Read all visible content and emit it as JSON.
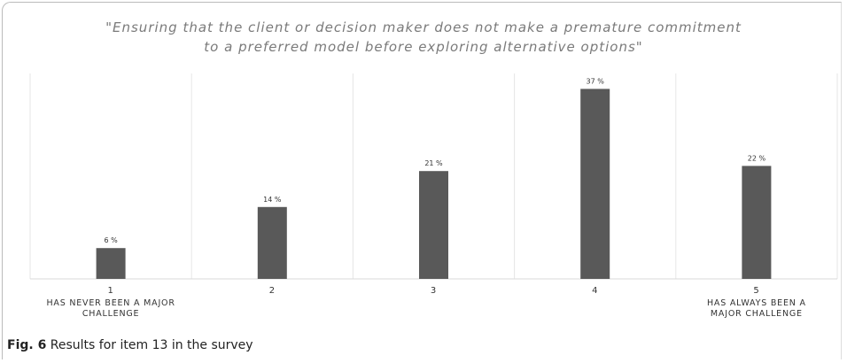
{
  "chart_data": {
    "type": "bar",
    "title": "\"Ensuring that the client or decision maker does not make a premature commitment to a preferred model before exploring alternative options\"",
    "categories": [
      "1",
      "2",
      "3",
      "4",
      "5"
    ],
    "category_notes": [
      "HAS NEVER BEEN A MAJOR CHALLENGE",
      null,
      null,
      null,
      "HAS ALWAYS BEEN A MAJOR CHALLENGE"
    ],
    "values": [
      6,
      14,
      21,
      37,
      22
    ],
    "value_labels": [
      "6 %",
      "14 %",
      "21 %",
      "37 %",
      "22 %"
    ],
    "color": "#595959",
    "ylim": [
      0,
      40
    ]
  },
  "caption": {
    "label": "Fig. 6",
    "text": "Results for item 13 in the survey"
  }
}
